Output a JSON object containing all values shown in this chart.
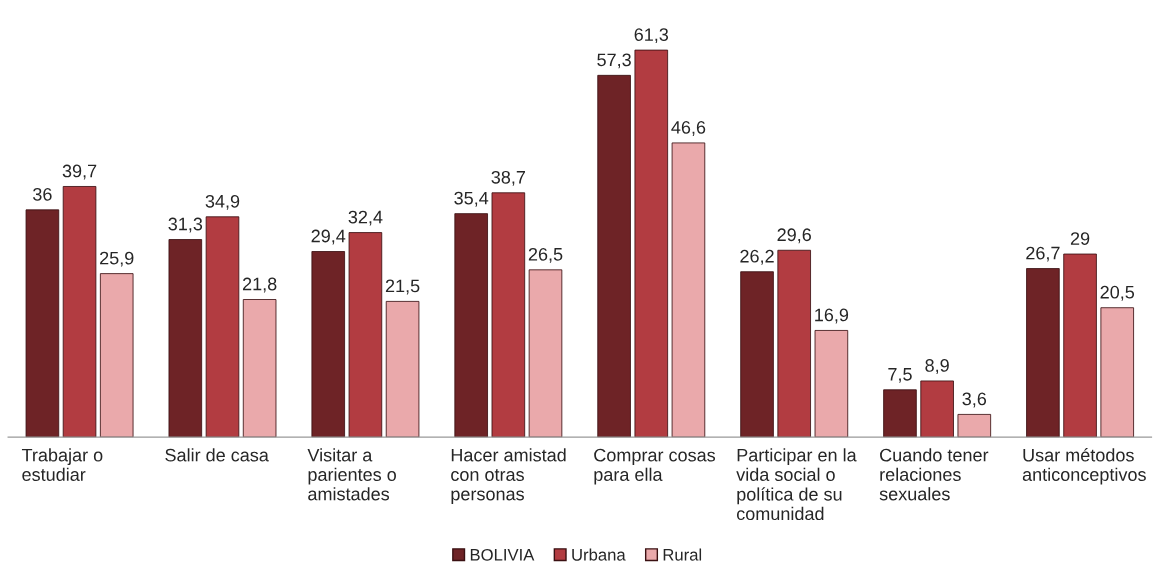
{
  "chart_data": {
    "type": "bar",
    "categories": [
      "Trabajar o\nestudiar",
      "Salir de casa",
      "Visitar a\nparientes o\namistades",
      "Hacer amistad\ncon otras\npersonas",
      "Comprar cosas\npara ella",
      "Participar en la\nvida social o\npolítica de su\ncomunidad",
      "Cuando tener\nrelaciones\nsexuales",
      "Usar métodos\nanticonceptivos"
    ],
    "series": [
      {
        "name": "BOLIVIA",
        "color": "#6e2326",
        "values": [
          36,
          31.3,
          29.4,
          35.4,
          57.3,
          26.2,
          7.5,
          26.7
        ],
        "value_labels": [
          "36",
          "31,3",
          "29,4",
          "35,4",
          "57,3",
          "26,2",
          "7,5",
          "26,7"
        ]
      },
      {
        "name": "Urbana",
        "color": "#b23c41",
        "values": [
          39.7,
          34.9,
          32.4,
          38.7,
          61.3,
          29.6,
          8.9,
          29
        ],
        "value_labels": [
          "39,7",
          "34,9",
          "32,4",
          "38,7",
          "61,3",
          "29,6",
          "8,9",
          "29"
        ]
      },
      {
        "name": "Rural",
        "color": "#eaa9ab",
        "values": [
          25.9,
          21.8,
          21.5,
          26.5,
          46.6,
          16.9,
          3.6,
          20.5
        ],
        "value_labels": [
          "25,9",
          "21,8",
          "21,5",
          "26,5",
          "46,6",
          "16,9",
          "3,6",
          "20,5"
        ]
      }
    ],
    "legend": "bottom",
    "grid": false
  }
}
